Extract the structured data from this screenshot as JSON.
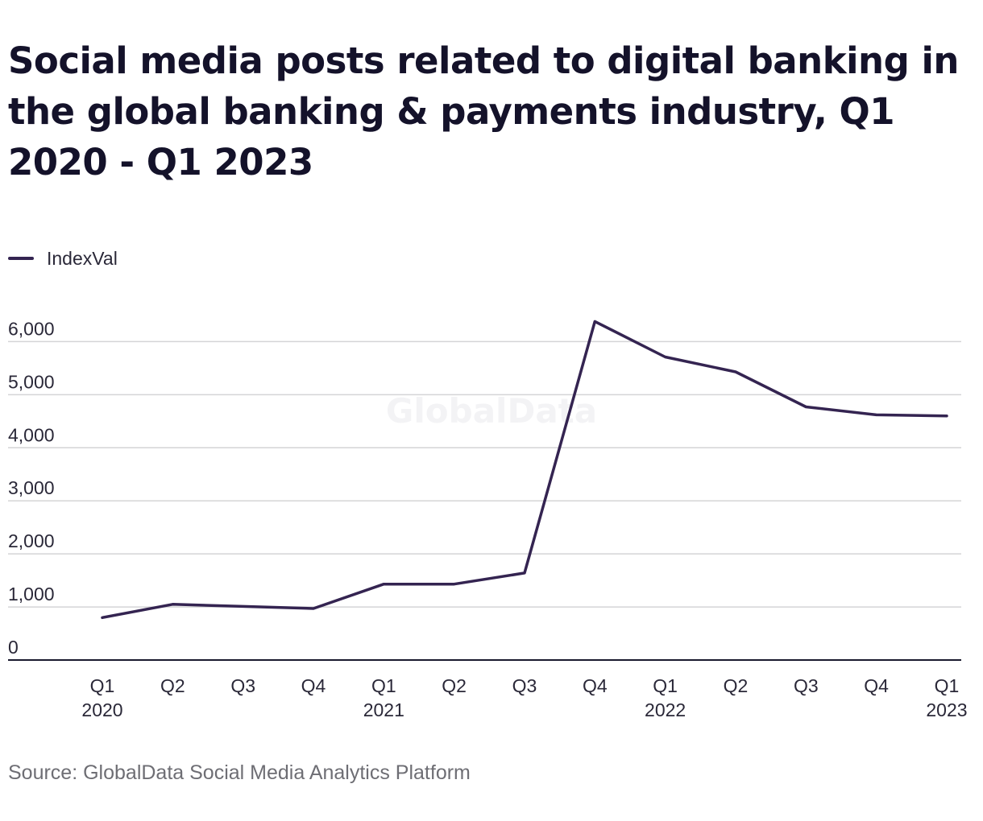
{
  "chart_data": {
    "type": "line",
    "title": "Social media posts related to digital banking in the global banking & payments industry, Q1 2020 - Q1 2023",
    "categories": [
      [
        "Q1",
        "2020"
      ],
      [
        "Q2"
      ],
      [
        "Q3"
      ],
      [
        "Q4"
      ],
      [
        "Q1",
        "2021"
      ],
      [
        "Q2"
      ],
      [
        "Q3"
      ],
      [
        "Q4"
      ],
      [
        "Q1",
        "2022"
      ],
      [
        "Q2"
      ],
      [
        "Q3"
      ],
      [
        "Q4"
      ],
      [
        "Q1",
        "2023"
      ]
    ],
    "series": [
      {
        "name": "IndexVal",
        "color": "#342451",
        "values": [
          800,
          1050,
          1010,
          970,
          1430,
          1430,
          1640,
          6380,
          5710,
          5430,
          4770,
          4620,
          4600
        ]
      }
    ],
    "ylim": [
      0,
      6000
    ],
    "yticks": [
      0,
      1000,
      2000,
      3000,
      4000,
      5000,
      6000
    ],
    "ytick_labels": [
      "0",
      "1,000",
      "2,000",
      "3,000",
      "4,000",
      "5,000",
      "6,000"
    ],
    "grid": true,
    "legend_position": "top-left",
    "watermark": "GlobalData"
  },
  "source": "Source: GlobalData Social Media Analytics Platform"
}
